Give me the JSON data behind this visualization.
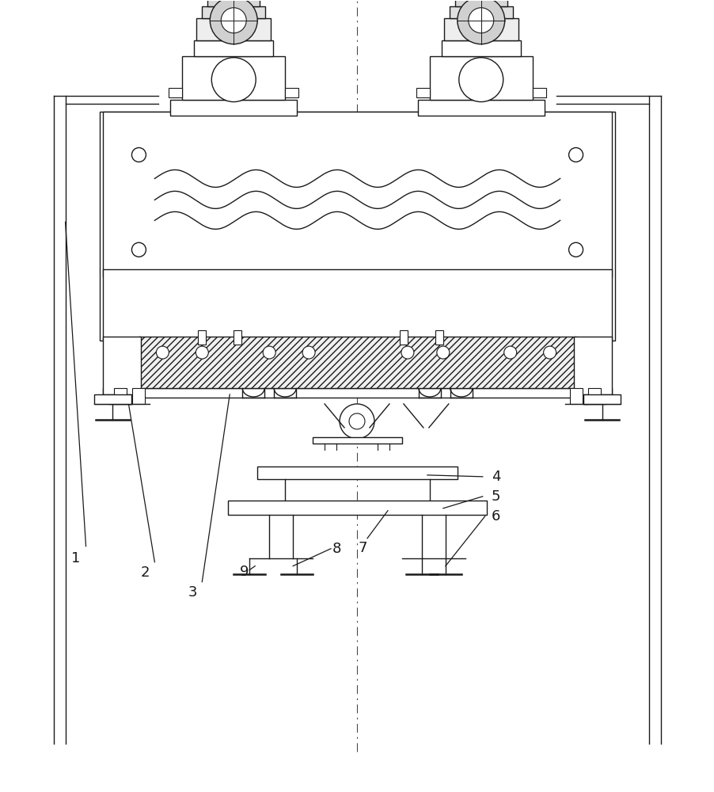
{
  "bg_color": "#ffffff",
  "line_color": "#1a1a1a",
  "fig_width": 9.03,
  "fig_height": 10.0,
  "lw_main": 1.0,
  "lw_thick": 1.8,
  "lw_thin": 0.7,
  "label_fontsize": 13
}
